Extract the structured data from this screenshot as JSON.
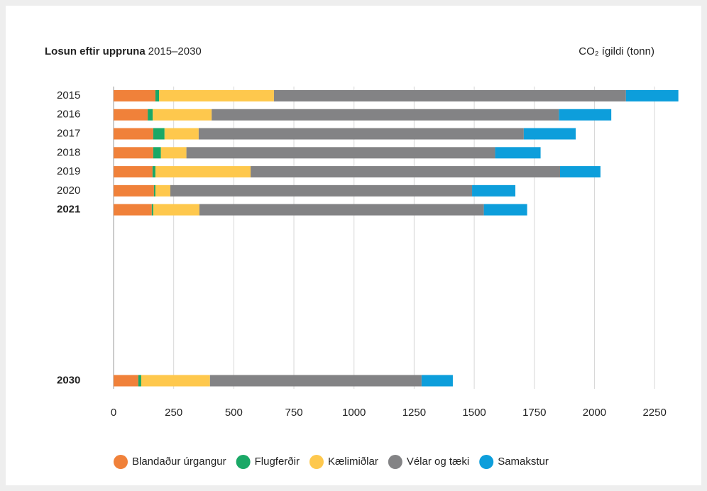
{
  "chart_data": {
    "type": "stacked-bar-horizontal",
    "title": "Losun eftir uppruna",
    "subtitle": "2015–2030",
    "axis_label": "CO₂ ígildi (tonn)",
    "categories": [
      "2015",
      "2016",
      "2017",
      "2018",
      "2019",
      "2020",
      "2021",
      null,
      null,
      null,
      null,
      null,
      null,
      null,
      null,
      "2030"
    ],
    "bold_categories": [
      6,
      15
    ],
    "series": [
      {
        "name": "Blandaður úrgangur",
        "color": "#f0813a",
        "values": [
          174,
          142,
          165,
          165,
          162,
          168,
          159,
          null,
          null,
          null,
          null,
          null,
          null,
          null,
          null,
          103
        ]
      },
      {
        "name": "Flugferðir",
        "color": "#1aa866",
        "values": [
          15,
          21,
          47,
          32,
          12,
          6,
          6,
          null,
          null,
          null,
          null,
          null,
          null,
          null,
          null,
          12
        ]
      },
      {
        "name": "Kælimiðlar",
        "color": "#fec84d",
        "values": [
          478,
          245,
          142,
          106,
          396,
          62,
          192,
          null,
          null,
          null,
          null,
          null,
          null,
          null,
          null,
          286
        ]
      },
      {
        "name": "Vélar og tæki",
        "color": "#838385",
        "values": [
          1464,
          1444,
          1352,
          1284,
          1287,
          1255,
          1183,
          null,
          null,
          null,
          null,
          null,
          null,
          null,
          null,
          880
        ]
      },
      {
        "name": "Samakstur",
        "color": "#0d9edb",
        "values": [
          218,
          218,
          216,
          189,
          168,
          180,
          180,
          null,
          null,
          null,
          null,
          null,
          null,
          null,
          null,
          130
        ]
      }
    ],
    "xlim": [
      0,
      2350
    ],
    "xticks": [
      0,
      250,
      500,
      750,
      1000,
      1250,
      1500,
      1750,
      2000,
      2250
    ],
    "grid": true,
    "legend": "bottom"
  }
}
